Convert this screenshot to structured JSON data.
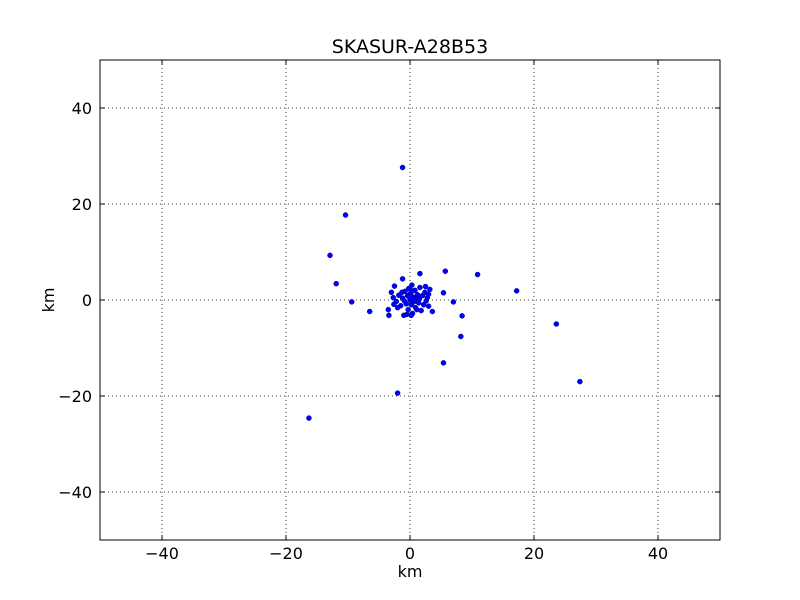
{
  "chart_data": {
    "type": "scatter",
    "title": "SKASUR-A28B53",
    "xlabel": "km",
    "ylabel": "km",
    "xlim": [
      -50,
      50
    ],
    "ylim": [
      -50,
      50
    ],
    "xticks": [
      -40,
      -20,
      0,
      20,
      40
    ],
    "yticks": [
      -40,
      -20,
      0,
      20,
      40
    ],
    "grid": true,
    "marker_color": "#0000ff",
    "series": [
      {
        "points": [
          [
            -1.2,
            27.6
          ],
          [
            -10.4,
            17.7
          ],
          [
            -12.9,
            9.3
          ],
          [
            -11.9,
            3.4
          ],
          [
            -9.4,
            -0.4
          ],
          [
            -6.5,
            -2.4
          ],
          [
            -16.3,
            -24.6
          ],
          [
            -2.0,
            -19.4
          ],
          [
            5.4,
            -13.1
          ],
          [
            8.2,
            -7.6
          ],
          [
            8.4,
            -3.3
          ],
          [
            7.0,
            -0.4
          ],
          [
            5.4,
            1.5
          ],
          [
            5.7,
            6.0
          ],
          [
            10.9,
            5.3
          ],
          [
            17.2,
            1.9
          ],
          [
            23.6,
            -5.0
          ],
          [
            27.4,
            -17.0
          ],
          [
            -3.5,
            -2.0
          ],
          [
            -3.4,
            -3.2
          ],
          [
            -3.0,
            1.6
          ],
          [
            -2.5,
            2.9
          ],
          [
            -1.2,
            4.4
          ],
          [
            1.6,
            5.5
          ],
          [
            -2.7,
            0.5
          ],
          [
            -2.2,
            -0.3
          ],
          [
            -1.8,
            1.0
          ],
          [
            -1.5,
            -1.2
          ],
          [
            -1.2,
            0.4
          ],
          [
            -1.0,
            -3.2
          ],
          [
            -0.8,
            1.8
          ],
          [
            -0.6,
            -0.8
          ],
          [
            -0.4,
            0.9
          ],
          [
            -0.3,
            -2.0
          ],
          [
            -0.2,
            2.4
          ],
          [
            0.0,
            0.0
          ],
          [
            0.1,
            1.4
          ],
          [
            0.2,
            -1.0
          ],
          [
            0.3,
            3.1
          ],
          [
            0.4,
            -2.8
          ],
          [
            0.5,
            0.6
          ],
          [
            0.6,
            -0.4
          ],
          [
            0.8,
            2.0
          ],
          [
            0.9,
            -1.6
          ],
          [
            1.0,
            0.3
          ],
          [
            1.2,
            1.1
          ],
          [
            1.4,
            -0.6
          ],
          [
            1.6,
            2.6
          ],
          [
            1.8,
            -2.2
          ],
          [
            2.0,
            0.9
          ],
          [
            2.2,
            -1.0
          ],
          [
            2.4,
            1.6
          ],
          [
            2.6,
            -0.2
          ],
          [
            2.8,
            0.5
          ],
          [
            3.0,
            -1.3
          ],
          [
            3.2,
            2.2
          ],
          [
            3.6,
            -2.4
          ],
          [
            -0.5,
            -3.0
          ],
          [
            0.2,
            -3.2
          ],
          [
            -2.0,
            -1.6
          ],
          [
            -2.6,
            -0.9
          ],
          [
            1.1,
            -2.0
          ],
          [
            0.7,
            0.0
          ],
          [
            -0.1,
            0.6
          ],
          [
            1.5,
            0.2
          ],
          [
            -1.3,
            1.6
          ],
          [
            2.5,
            2.8
          ],
          [
            3.0,
            1.2
          ],
          [
            -0.9,
            -0.2
          ],
          [
            0.4,
            1.9
          ]
        ]
      }
    ]
  }
}
